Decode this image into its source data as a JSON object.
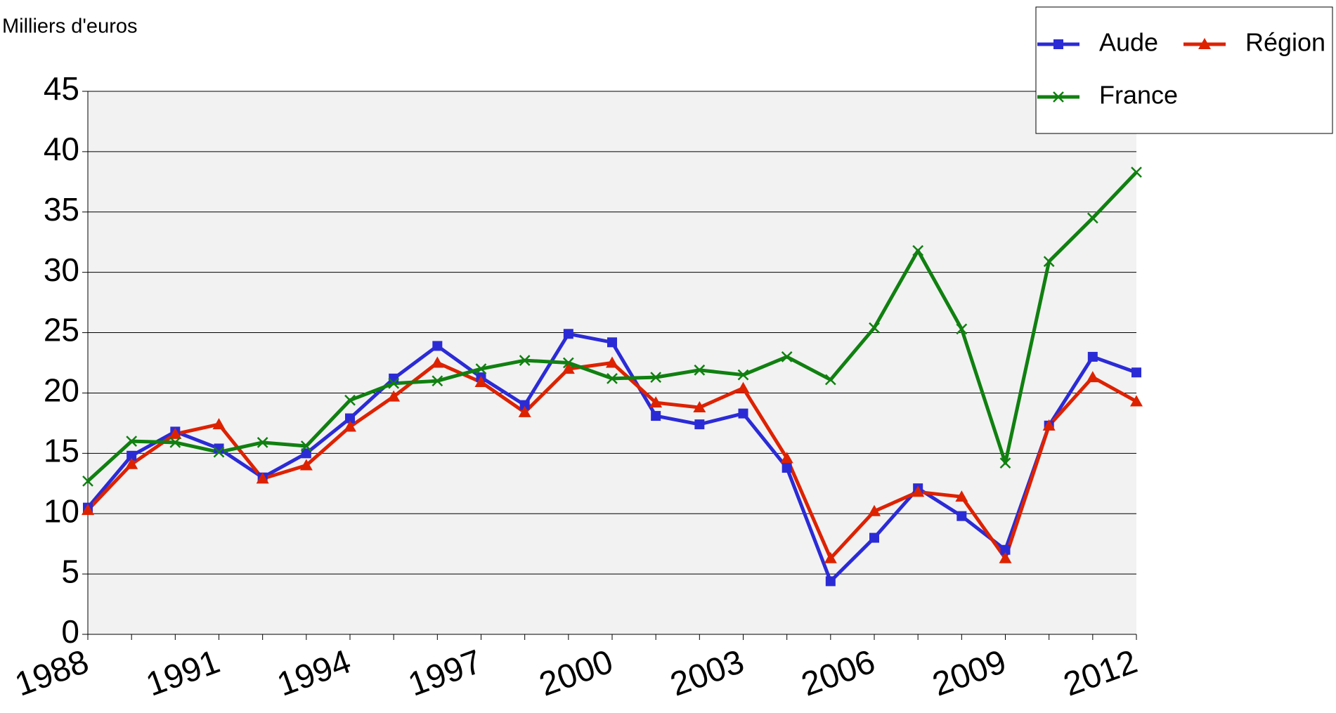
{
  "chart_data": {
    "type": "line",
    "y_label": "Milliers d'euros",
    "x": [
      1988,
      1989,
      1990,
      1991,
      1992,
      1993,
      1994,
      1995,
      1996,
      1997,
      1998,
      1999,
      2000,
      2001,
      2002,
      2003,
      2004,
      2005,
      2006,
      2007,
      2008,
      2009,
      2010,
      2011,
      2012
    ],
    "series": [
      {
        "name": "Aude",
        "color": "#2b2bd6",
        "marker": "square",
        "values": [
          10.5,
          14.8,
          16.8,
          15.4,
          13.0,
          15.0,
          17.9,
          21.2,
          23.9,
          21.3,
          19.0,
          24.9,
          24.2,
          18.1,
          17.4,
          18.3,
          13.8,
          4.4,
          8.0,
          12.1,
          9.8,
          7.0,
          17.3,
          23.0,
          21.7
        ]
      },
      {
        "name": "Région",
        "color": "#dd2200",
        "marker": "triangle",
        "values": [
          10.3,
          14.1,
          16.6,
          17.4,
          12.9,
          14.0,
          17.2,
          19.7,
          22.5,
          20.9,
          18.4,
          22.0,
          22.5,
          19.2,
          18.8,
          20.4,
          14.6,
          6.3,
          10.2,
          11.8,
          11.4,
          6.3,
          17.3,
          21.3,
          19.3
        ]
      },
      {
        "name": "France",
        "color": "#108010",
        "marker": "x",
        "values": [
          12.7,
          16.0,
          15.9,
          15.1,
          15.9,
          15.6,
          19.4,
          20.8,
          21.0,
          22.0,
          22.7,
          22.5,
          21.2,
          21.3,
          21.9,
          21.5,
          23.0,
          21.1,
          25.4,
          31.8,
          25.3,
          14.2,
          30.9,
          34.5,
          38.3
        ]
      }
    ],
    "xlim": [
      1988,
      2012
    ],
    "xticks": [
      1988,
      1991,
      1994,
      1997,
      2000,
      2003,
      2006,
      2009,
      2012
    ],
    "ylim": [
      0,
      45
    ],
    "yticks": [
      0,
      5,
      10,
      15,
      20,
      25,
      30,
      35,
      40,
      45
    ],
    "grid": true,
    "legend": "top-right",
    "plot_background": "#f2f2f2"
  }
}
